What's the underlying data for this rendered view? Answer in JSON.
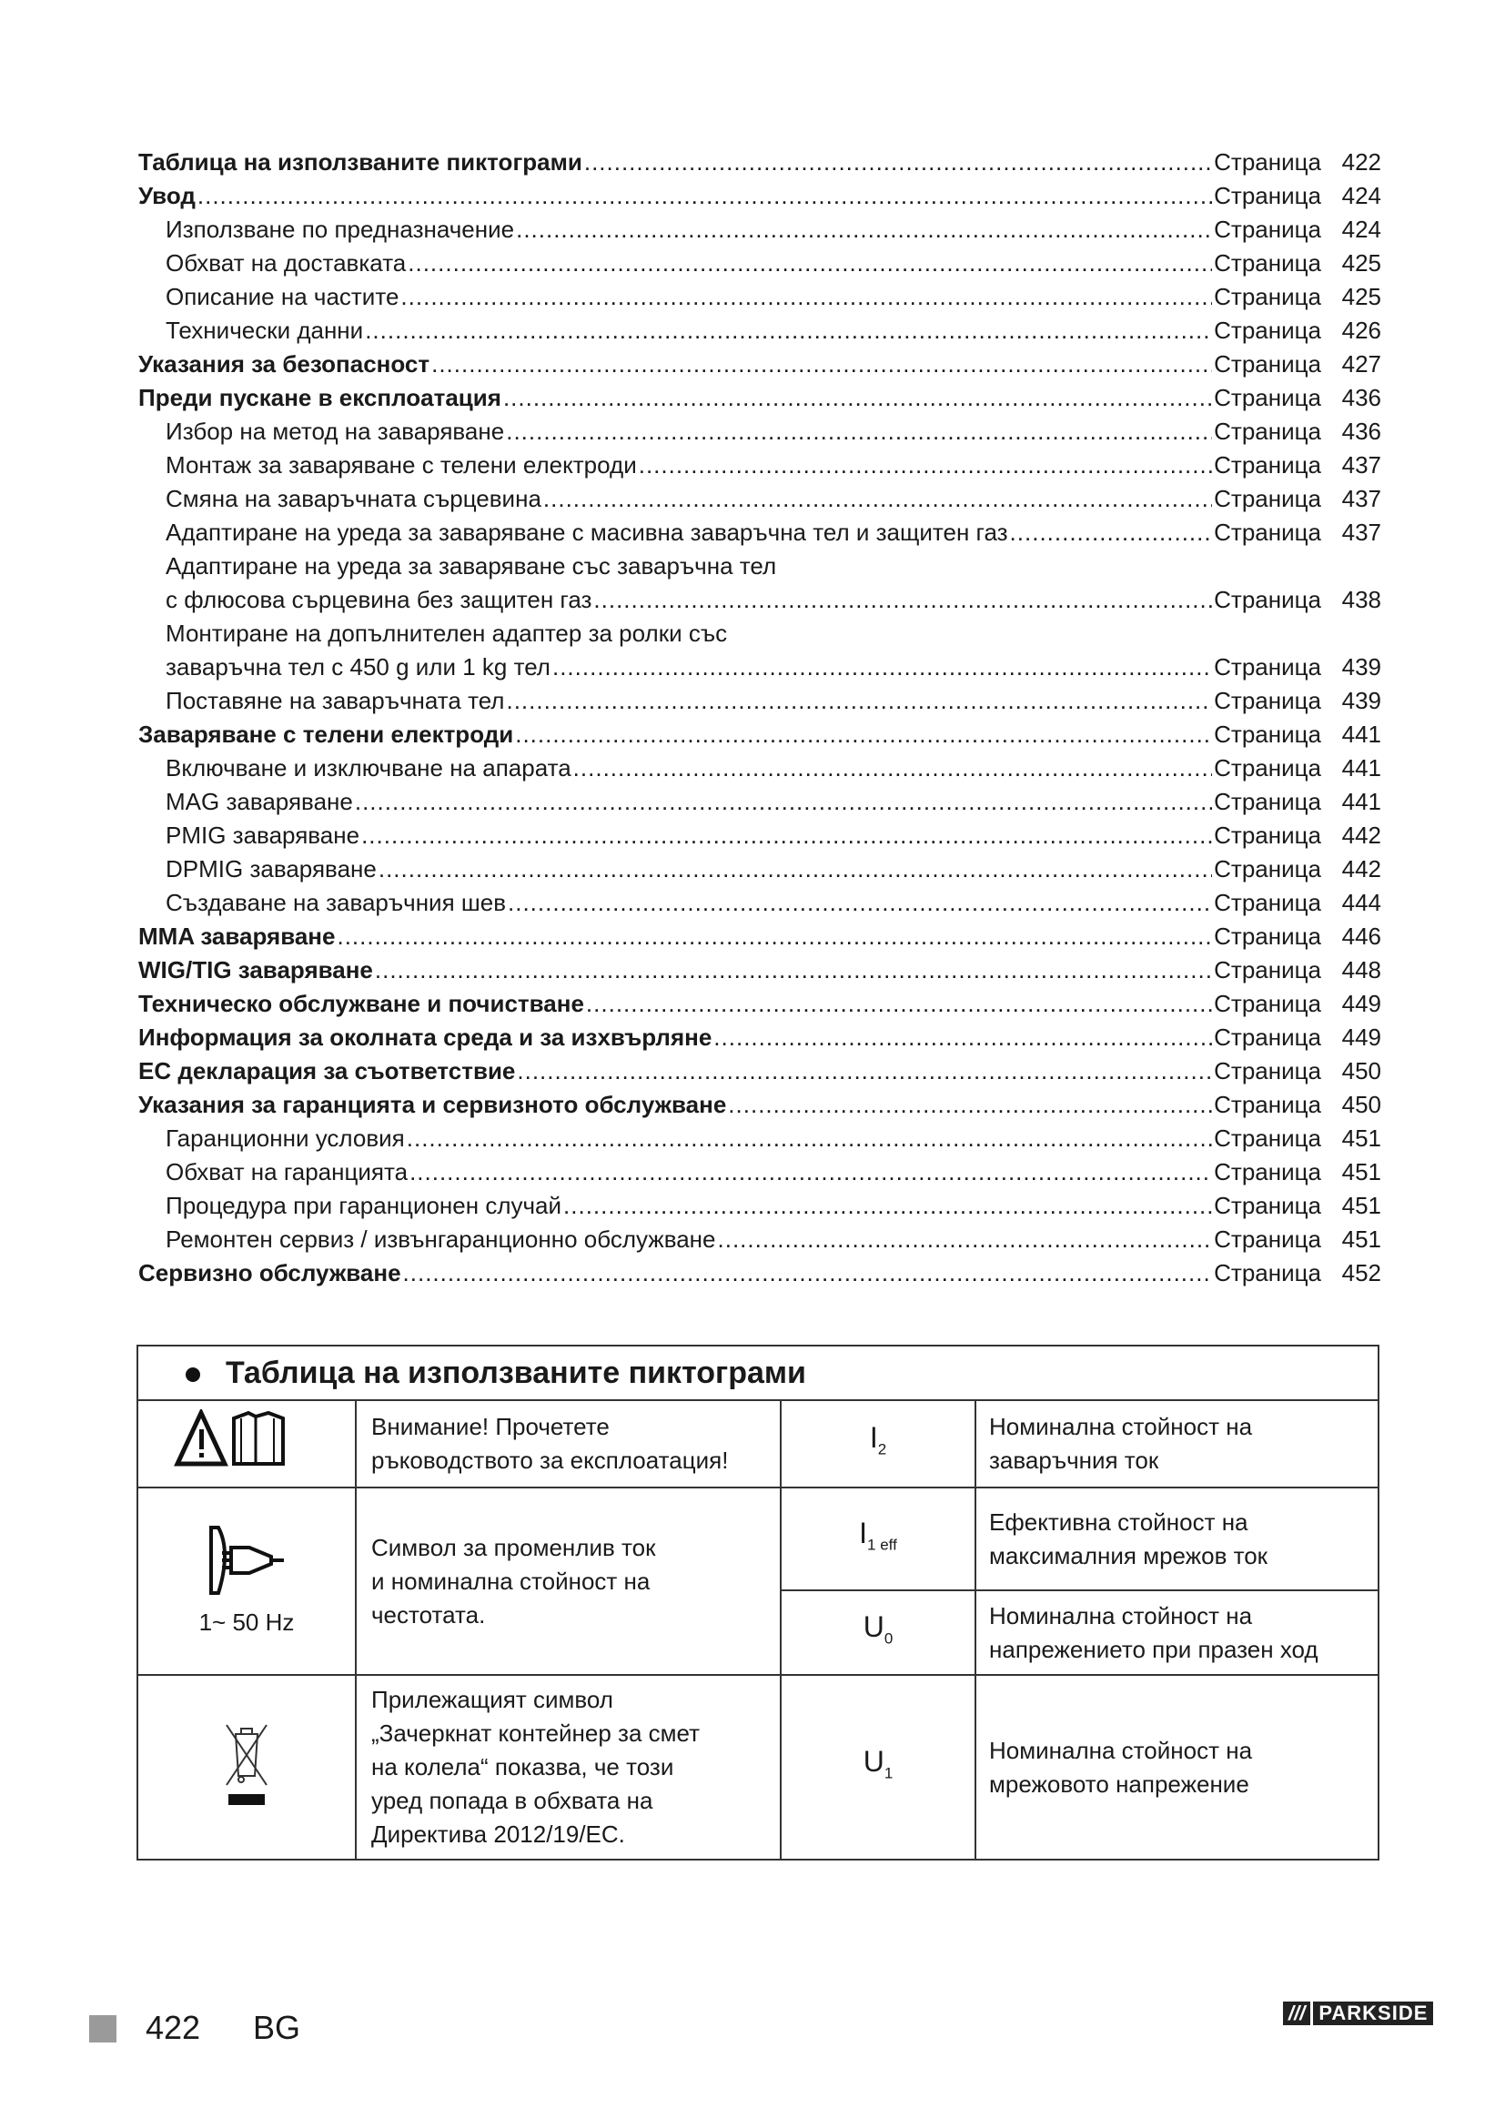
{
  "toc": {
    "page_word": "Страница",
    "entries": [
      {
        "label": "Таблица на използваните пиктограми",
        "page": "422",
        "level": 0
      },
      {
        "label": "Увод",
        "page": "424",
        "level": 0
      },
      {
        "label": "Използване по предназначение",
        "page": "424",
        "level": 1
      },
      {
        "label": "Обхват на доставката",
        "page": "425",
        "level": 1
      },
      {
        "label": "Описание на частите",
        "page": "425",
        "level": 1
      },
      {
        "label": "Технически данни",
        "page": "426",
        "level": 1
      },
      {
        "label": "Указания за безопасност",
        "page": "427",
        "level": 0
      },
      {
        "label": "Преди пускане в експлоатация",
        "page": "436",
        "level": 0
      },
      {
        "label": "Избор на метод на заваряване",
        "page": "436",
        "level": 1
      },
      {
        "label": "Монтаж за заваряване с телени електроди",
        "page": "437",
        "level": 1
      },
      {
        "label": "Смяна на заваръчната сърцевина",
        "page": "437",
        "level": 1
      },
      {
        "label": "Адаптиране на уреда за заваряване с масивна заваръчна тел и  защитен газ",
        "page": "437",
        "level": 1
      },
      {
        "label": "Адаптиране на уреда за заваряване със заваръчна тел",
        "page": "",
        "level": 1
      },
      {
        "label": "с флюсова сърцевина без защитен газ",
        "page": "438",
        "level": 1
      },
      {
        "label": "Монтиране на допълнителен адаптер за ролки със",
        "page": "",
        "level": 1
      },
      {
        "label": "заваръчна тел с 450 g или 1 kg тел",
        "page": "439",
        "level": 1
      },
      {
        "label": "Поставяне на заваръчната тел",
        "page": "439",
        "level": 1
      },
      {
        "label": "Заваряване с телени електроди",
        "page": "441",
        "level": 0
      },
      {
        "label": "Включване и изключване на апарата",
        "page": "441",
        "level": 1
      },
      {
        "label": "MAG заваряване",
        "page": "441",
        "level": 1
      },
      {
        "label": "PMIG заваряване",
        "page": "442",
        "level": 1
      },
      {
        "label": "DPMIG заваряване",
        "page": "442",
        "level": 1
      },
      {
        "label": "Създаване на заваръчния шев",
        "page": "444",
        "level": 1
      },
      {
        "label": "MMA заваряване",
        "page": "446",
        "level": 0
      },
      {
        "label": "WIG/TIG заваряване",
        "page": "448",
        "level": 0
      },
      {
        "label": "Техническо обслужване и почистване",
        "page": "449",
        "level": 0
      },
      {
        "label": "Информация за околната среда и за изхвърляне",
        "page": "449",
        "level": 0
      },
      {
        "label": "ЕС декларация за съответствие",
        "page": "450",
        "level": 0
      },
      {
        "label": "Указания за гаранцията и сервизното обслужване",
        "page": "450",
        "level": 0
      },
      {
        "label": "Гаранционни условия",
        "page": "451",
        "level": 1
      },
      {
        "label": "Обхват на гаранцията",
        "page": "451",
        "level": 1
      },
      {
        "label": "Процедура при гаранционен случай",
        "page": "451",
        "level": 1
      },
      {
        "label": "Ремонтен сервиз / извънгаранционно обслужване",
        "page": "451",
        "level": 1
      },
      {
        "label": "Сервизно обслужване",
        "page": "452",
        "level": 0
      }
    ]
  },
  "pictogram_table": {
    "title": "Таблица на използваните пиктограми",
    "row1": {
      "icon": "warning-manual-icon",
      "text1": "Внимание! Прочетете",
      "text2": "ръководството за експлоатация!",
      "sym": "I",
      "sub": "2",
      "desc1": "Номинална стойност на",
      "desc2": "заваръчния ток"
    },
    "row2": {
      "icon": "ac-plug-icon",
      "caption": "1~ 50 Hz",
      "text1": "Символ за променлив ток",
      "text2": "и номинална стойност на",
      "text3": "честотата.",
      "symA": "I",
      "subA": "1 eff",
      "descA1": "Ефективна стойност на",
      "descA2": "максималния мрежов ток",
      "symB": "U",
      "subB": "0",
      "descB1": "Номинална стойност на",
      "descB2": "напрежението при празен ход"
    },
    "row3": {
      "icon": "crossed-bin-icon",
      "text1": "Прилежащият символ",
      "text2": "„Зачеркнат контейнер за смет",
      "text3": "на колела“ показва, че този",
      "text4": "уред попада в обхвата на",
      "text5": "Директива 2012/19/EC.",
      "sym": "U",
      "sub": "1",
      "desc1": "Номинална стойност на",
      "desc2": "мрежовото напрежение"
    }
  },
  "footer": {
    "page": "422",
    "lang": "BG",
    "brand": "PARKSIDE",
    "brand_slashes": "///"
  }
}
